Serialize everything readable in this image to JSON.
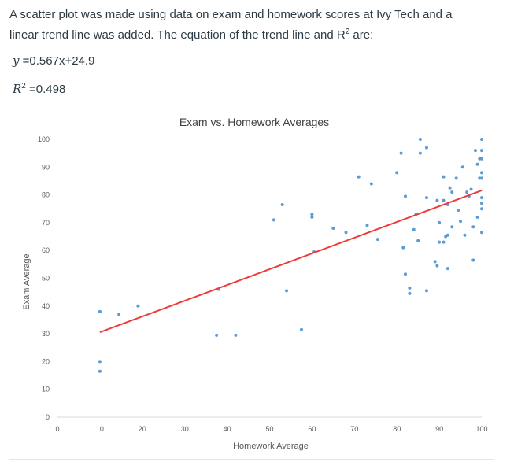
{
  "intro": {
    "line1": "A scatter plot was made using data on exam and homework scores at Ivy Tech and a",
    "line2_prefix": "linear trend line was added.  The equation of the trend line and R",
    "line2_suffix": " are:"
  },
  "equation": {
    "lhs": "y",
    "rhs": " =0.567x+24.9",
    "r2_label": "R",
    "r2_value": " =0.498"
  },
  "chart_data": {
    "type": "scatter",
    "title": "Exam vs. Homework Averages",
    "xlabel": "Homework Average",
    "ylabel": "Exam Average",
    "xlim": [
      0,
      100
    ],
    "ylim": [
      0,
      100
    ],
    "xticks": [
      "0",
      "10",
      "20",
      "30",
      "40",
      "50",
      "60",
      "70",
      "80",
      "90",
      "100"
    ],
    "yticks": [
      "0",
      "10",
      "20",
      "30",
      "40",
      "50",
      "60",
      "70",
      "80",
      "90",
      "100"
    ],
    "grid": false,
    "point_color": "#5b9bd5",
    "trend_color": "#ef3b39",
    "trendline": {
      "slope": 0.567,
      "intercept": 24.9,
      "x_start": 10,
      "x_end": 100
    },
    "points": [
      [
        10,
        38
      ],
      [
        10,
        20
      ],
      [
        10,
        16.5
      ],
      [
        14.5,
        37
      ],
      [
        19,
        40
      ],
      [
        37.5,
        29.5
      ],
      [
        38,
        46
      ],
      [
        42,
        29.5
      ],
      [
        51,
        71
      ],
      [
        53,
        76.5
      ],
      [
        54,
        45.5
      ],
      [
        57.5,
        31.5
      ],
      [
        60,
        73
      ],
      [
        60,
        72
      ],
      [
        60.5,
        59.5
      ],
      [
        65,
        68
      ],
      [
        68,
        66.5
      ],
      [
        71,
        86.5
      ],
      [
        73,
        69
      ],
      [
        74,
        84
      ],
      [
        75.5,
        64
      ],
      [
        80,
        88
      ],
      [
        81,
        95
      ],
      [
        81.5,
        61
      ],
      [
        82,
        51.5
      ],
      [
        82,
        79.5
      ],
      [
        83,
        46.5
      ],
      [
        83,
        44.5
      ],
      [
        84,
        67.5
      ],
      [
        84.5,
        73
      ],
      [
        85,
        63.5
      ],
      [
        85.5,
        100
      ],
      [
        85.5,
        95
      ],
      [
        87,
        97
      ],
      [
        87,
        79
      ],
      [
        87,
        45.5
      ],
      [
        89,
        56
      ],
      [
        89.5,
        54.5
      ],
      [
        89.5,
        78
      ],
      [
        90,
        70
      ],
      [
        90,
        63
      ],
      [
        91,
        63
      ],
      [
        91,
        78
      ],
      [
        91,
        86.5
      ],
      [
        91.5,
        65
      ],
      [
        92,
        76.5
      ],
      [
        92,
        53.5
      ],
      [
        92,
        65.5
      ],
      [
        92.5,
        82.5
      ],
      [
        93,
        68.5
      ],
      [
        93,
        81
      ],
      [
        94,
        86
      ],
      [
        94.5,
        74.5
      ],
      [
        95,
        70.5
      ],
      [
        95.5,
        90
      ],
      [
        96,
        65.5
      ],
      [
        96.5,
        81
      ],
      [
        97,
        79.5
      ],
      [
        97.5,
        82
      ],
      [
        98,
        68.5
      ],
      [
        98,
        56.5
      ],
      [
        98.5,
        96
      ],
      [
        99,
        91
      ],
      [
        99,
        72
      ],
      [
        99.5,
        86
      ],
      [
        99.5,
        93
      ],
      [
        100,
        100
      ],
      [
        100,
        96
      ],
      [
        100,
        93
      ],
      [
        100,
        88
      ],
      [
        100,
        86
      ],
      [
        100,
        79
      ],
      [
        100,
        77
      ],
      [
        100,
        75
      ],
      [
        100,
        66.5
      ]
    ]
  }
}
